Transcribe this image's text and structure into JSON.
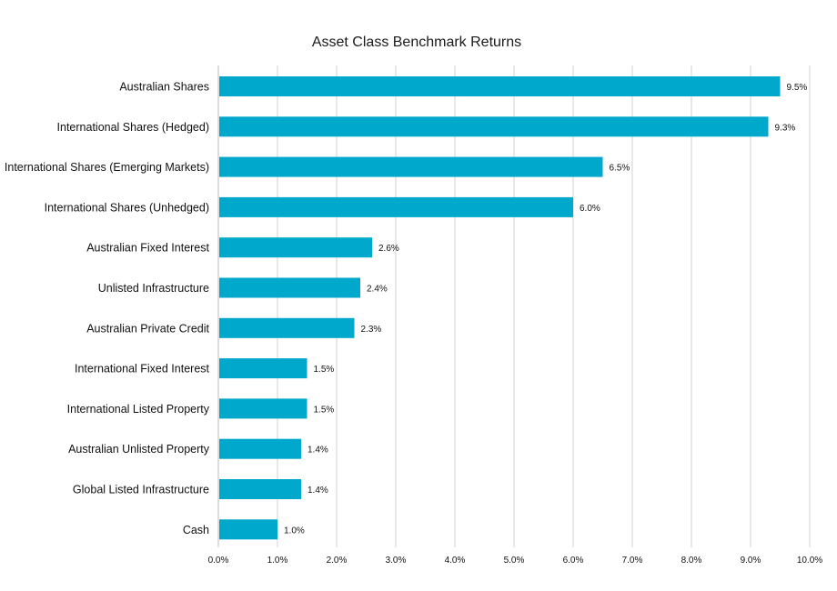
{
  "chart_data": {
    "type": "bar",
    "orientation": "horizontal",
    "title": "Asset Class Benchmark Returns",
    "xlabel": "",
    "ylabel": "",
    "xlim": [
      0,
      10
    ],
    "x_ticks": [
      "0.0%",
      "1.0%",
      "2.0%",
      "3.0%",
      "4.0%",
      "5.0%",
      "6.0%",
      "7.0%",
      "8.0%",
      "9.0%",
      "10.0%"
    ],
    "grid": "vertical",
    "bar_color": "#00A8CC",
    "categories": [
      "Australian Shares",
      "International Shares (Hedged)",
      "International Shares (Emerging Markets)",
      "International Shares (Unhedged)",
      "Australian Fixed Interest",
      "Unlisted Infrastructure",
      "Australian Private Credit",
      "International Fixed Interest",
      "International Listed Property",
      "Australian Unlisted Property",
      "Global Listed Infrastructure",
      "Cash"
    ],
    "values": [
      9.5,
      9.3,
      6.5,
      6.0,
      2.6,
      2.4,
      2.3,
      1.5,
      1.5,
      1.4,
      1.4,
      1.0
    ],
    "value_labels": [
      "9.5%",
      "9.3%",
      "6.5%",
      "6.0%",
      "2.6%",
      "2.4%",
      "2.3%",
      "1.5%",
      "1.5%",
      "1.4%",
      "1.4%",
      "1.0%"
    ]
  }
}
